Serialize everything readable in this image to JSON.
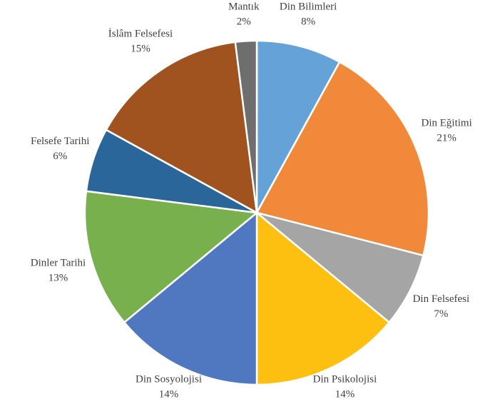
{
  "chart_data": {
    "type": "pie",
    "categories": [
      "Din Bilimleri",
      "Din Eğitimi",
      "Din Felsefesi",
      "Din Psikolojisi",
      "Din Sosyolojisi",
      "Dinler Tarihi",
      "Felsefe Tarihi",
      "İslâm Felsefesi",
      "Mantık"
    ],
    "values": [
      8,
      21,
      7,
      14,
      14,
      13,
      6,
      15,
      2
    ],
    "value_labels": [
      "8%",
      "21%",
      "7%",
      "14%",
      "14%",
      "13%",
      "6%",
      "15%",
      "2%"
    ],
    "colors": [
      "#65a2d8",
      "#f08a3a",
      "#a5a5a5",
      "#fdc010",
      "#5078c0",
      "#78b04e",
      "#2a6699",
      "#a0521f",
      "#6e6e6e"
    ]
  }
}
